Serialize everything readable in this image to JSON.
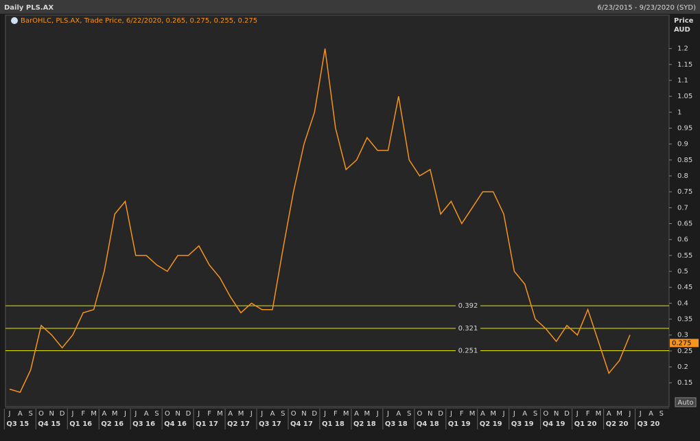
{
  "header": {
    "title": "Daily PLS.AX",
    "range": "6/23/2015 - 9/23/2020 (SYD)"
  },
  "chart_data": {
    "type": "line",
    "legend_text": "BarOHLC, PLS.AX, Trade Price, 6/22/2020, 0.265, 0.275, 0.255, 0.275",
    "y_axis_label": "Price",
    "y_axis_unit": "AUD",
    "scale_button": "Auto",
    "categories": [
      "J",
      "A",
      "S",
      "O",
      "N",
      "D",
      "J",
      "F",
      "M",
      "A",
      "M",
      "J",
      "J",
      "A",
      "S",
      "O",
      "N",
      "D",
      "J",
      "F",
      "M",
      "A",
      "M",
      "J",
      "J",
      "A",
      "S",
      "O",
      "N",
      "D",
      "J",
      "F",
      "M",
      "A",
      "M",
      "J",
      "J",
      "A",
      "S",
      "O",
      "N",
      "D",
      "J",
      "F",
      "M",
      "A",
      "M",
      "J",
      "J",
      "A",
      "S",
      "O",
      "N",
      "D",
      "J",
      "F",
      "M",
      "A",
      "M",
      "J",
      "J",
      "A",
      "S"
    ],
    "quarters": [
      "Q3 15",
      "Q4 15",
      "Q1 16",
      "Q2 16",
      "Q3 16",
      "Q4 16",
      "Q1 17",
      "Q2 17",
      "Q3 17",
      "Q4 17",
      "Q1 18",
      "Q2 18",
      "Q3 18",
      "Q4 18",
      "Q1 19",
      "Q2 19",
      "Q3 19",
      "Q4 19",
      "Q1 20",
      "Q2 20",
      "Q3 20"
    ],
    "series": [
      {
        "name": "PLS.AX",
        "color": "#f7941d",
        "values": [
          0.13,
          0.12,
          0.19,
          0.33,
          0.3,
          0.26,
          0.3,
          0.37,
          0.38,
          0.5,
          0.68,
          0.72,
          0.55,
          0.55,
          0.52,
          0.5,
          0.55,
          0.55,
          0.58,
          0.52,
          0.48,
          0.42,
          0.37,
          0.4,
          0.38,
          0.38,
          0.57,
          0.75,
          0.9,
          1.0,
          1.2,
          0.95,
          0.82,
          0.85,
          0.92,
          0.88,
          0.88,
          1.05,
          0.85,
          0.8,
          0.82,
          0.68,
          0.72,
          0.65,
          0.7,
          0.75,
          0.75,
          0.68,
          0.5,
          0.46,
          0.35,
          0.32,
          0.28,
          0.33,
          0.3,
          0.38,
          0.28,
          0.18,
          0.22,
          0.3,
          null,
          null,
          null
        ]
      }
    ],
    "levels": [
      0.392,
      0.321,
      0.251
    ],
    "level_color": "#e8e800",
    "last_price": 0.275,
    "ylim": [
      0.075,
      1.305
    ],
    "yticks": [
      0.15,
      0.2,
      0.25,
      0.3,
      0.35,
      0.4,
      0.45,
      0.5,
      0.55,
      0.6,
      0.65,
      0.7,
      0.75,
      0.8,
      0.85,
      0.9,
      0.95,
      1,
      1.05,
      1.1,
      1.15,
      1.2
    ],
    "grid": false
  }
}
